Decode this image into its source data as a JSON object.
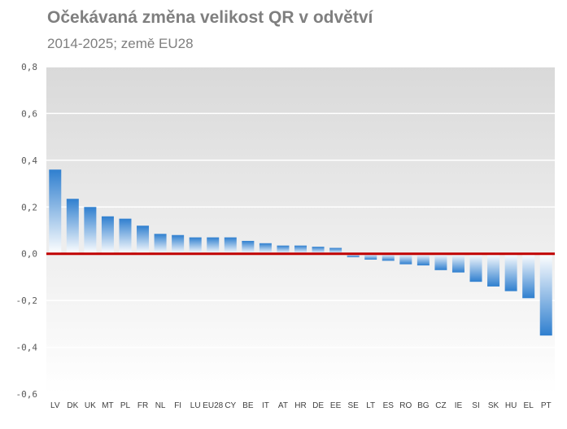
{
  "colors": {
    "bar_top": "#2f7fcf",
    "bar_fade": "#ffffff",
    "zero_line": "#c00000",
    "grid": "#ffffff",
    "plot_bg_top": "#d9d9d9",
    "plot_bg_bottom": "#ffffff"
  },
  "chart_data": {
    "type": "bar",
    "title": "Očekávaná změna velikost QR v odvětví",
    "subtitle": "2014-2025; země EU28",
    "xlabel": "",
    "ylabel": "",
    "ylim": [
      -0.6,
      0.8
    ],
    "yticks": [
      "0,8",
      "0,6",
      "0,4",
      "0,2",
      "0,0",
      "-0,2",
      "-0,4",
      "-0,6"
    ],
    "ytick_values": [
      0.8,
      0.6,
      0.4,
      0.2,
      0.0,
      -0.2,
      -0.4,
      -0.6
    ],
    "grid": true,
    "categories": [
      "LV",
      "DK",
      "UK",
      "MT",
      "PL",
      "FR",
      "NL",
      "FI",
      "LU",
      "EU28",
      "CY",
      "BE",
      "IT",
      "AT",
      "HR",
      "DE",
      "EE",
      "SE",
      "LT",
      "ES",
      "RO",
      "BG",
      "CZ",
      "IE",
      "SI",
      "SK",
      "HU",
      "EL",
      "PT"
    ],
    "values": [
      0.36,
      0.235,
      0.2,
      0.16,
      0.15,
      0.12,
      0.085,
      0.08,
      0.07,
      0.07,
      0.07,
      0.055,
      0.045,
      0.035,
      0.035,
      0.03,
      0.025,
      -0.015,
      -0.025,
      -0.03,
      -0.045,
      -0.05,
      -0.07,
      -0.08,
      -0.12,
      -0.14,
      -0.16,
      -0.19,
      -0.35
    ]
  }
}
